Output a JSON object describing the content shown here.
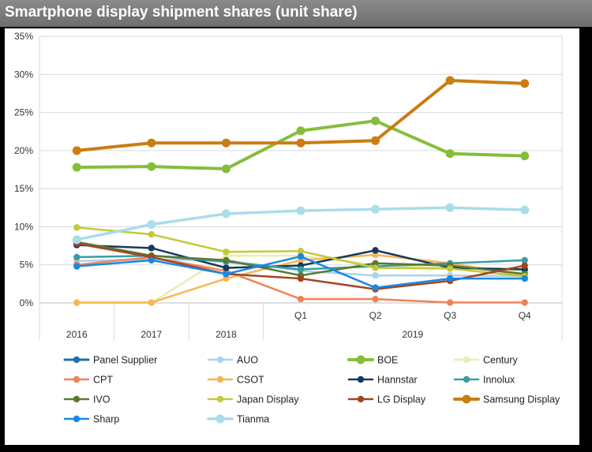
{
  "title": "Smartphone display shipment shares  (unit share)",
  "chart_data": {
    "type": "line",
    "title": "Smartphone display shipment shares  (unit share)",
    "categories": [
      "2016",
      "2017",
      "2018",
      "Q1",
      "Q2",
      "Q3",
      "Q4"
    ],
    "group_label": "2019",
    "y_ticks": [
      "0%",
      "5%",
      "10%",
      "15%",
      "20%",
      "25%",
      "30%",
      "35%"
    ],
    "ylim": [
      0,
      35
    ],
    "grid": "horizontal",
    "legend_position": "bottom",
    "series": [
      {
        "name": "Panel Supplier",
        "color": "#1f6fb4",
        "width": 3,
        "values": [
          null,
          null,
          null,
          null,
          null,
          null,
          null
        ]
      },
      {
        "name": "AUO",
        "color": "#a9d4ec",
        "width": 2.5,
        "values": [
          5.5,
          5.7,
          5.6,
          4.2,
          3.6,
          3.6,
          3.5
        ]
      },
      {
        "name": "BOE",
        "color": "#86bd3c",
        "width": 4,
        "values": [
          17.8,
          17.9,
          17.6,
          22.6,
          23.9,
          19.6,
          19.3
        ]
      },
      {
        "name": "Century",
        "color": "#e6efb0",
        "width": 2.5,
        "values": [
          0,
          0,
          6.2,
          6.2,
          5.0,
          4.6,
          4.2
        ]
      },
      {
        "name": "CPT",
        "color": "#ee8456",
        "width": 2.5,
        "values": [
          5.0,
          6.0,
          4.2,
          0.5,
          0.5,
          0.05,
          0.05
        ]
      },
      {
        "name": "CSOT",
        "color": "#f9b553",
        "width": 2.5,
        "values": [
          0.05,
          0.05,
          3.2,
          5.6,
          6.3,
          5.2,
          3.6
        ]
      },
      {
        "name": "Hannstar",
        "color": "#14395f",
        "width": 2.5,
        "values": [
          7.6,
          7.2,
          4.6,
          4.9,
          6.9,
          4.6,
          4.4
        ]
      },
      {
        "name": "Innolux",
        "color": "#3a9ca3",
        "width": 2.5,
        "values": [
          6.0,
          6.2,
          5.4,
          4.4,
          4.8,
          5.2,
          5.6
        ]
      },
      {
        "name": "IVO",
        "color": "#5a7a33",
        "width": 2.5,
        "values": [
          8.0,
          6.2,
          5.6,
          3.6,
          5.2,
          4.9,
          3.8
        ]
      },
      {
        "name": "Japan Display",
        "color": "#c3c93a",
        "width": 2.5,
        "values": [
          9.9,
          9.0,
          6.7,
          6.8,
          4.6,
          4.5,
          3.5
        ]
      },
      {
        "name": "LG Display",
        "color": "#a44422",
        "width": 2.5,
        "values": [
          7.8,
          6.0,
          3.8,
          3.2,
          1.8,
          2.9,
          4.9
        ]
      },
      {
        "name": "Samsung Display",
        "color": "#ca7d12",
        "width": 4,
        "values": [
          20.0,
          21.0,
          21.0,
          21.0,
          21.3,
          29.2,
          28.8
        ]
      },
      {
        "name": "Sharp",
        "color": "#1b87e5",
        "width": 2.5,
        "values": [
          4.8,
          5.6,
          3.8,
          6.1,
          2.0,
          3.2,
          3.2
        ]
      },
      {
        "name": "Tianma",
        "color": "#aadcea",
        "width": 3.5,
        "values": [
          8.3,
          10.3,
          11.7,
          12.1,
          12.3,
          12.5,
          12.2
        ]
      }
    ]
  }
}
